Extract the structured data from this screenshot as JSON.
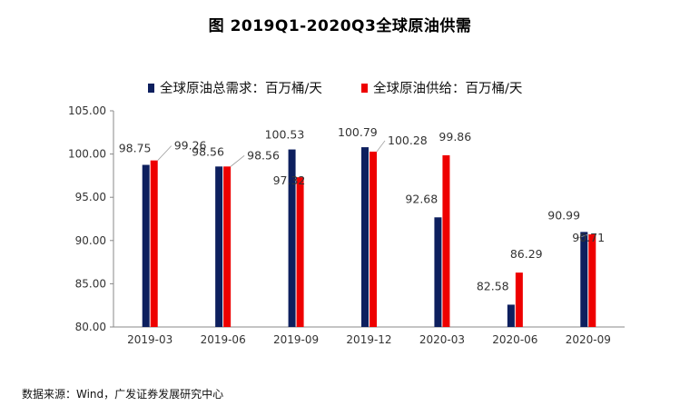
{
  "page": {
    "title": "图   2019Q1-2020Q3全球原油供需",
    "source": "数据来源：Wind，广发证券发展研究中心"
  },
  "chart_data": {
    "type": "bar",
    "categories": [
      "2019-03",
      "2019-06",
      "2019-09",
      "2019-12",
      "2020-03",
      "2020-06",
      "2020-09"
    ],
    "series": [
      {
        "name": "全球原油总需求：百万桶/天",
        "color": "#0D1F5E",
        "values": [
          98.75,
          98.56,
          100.53,
          100.79,
          92.68,
          82.58,
          90.99
        ],
        "labels": [
          "98.75",
          "98.56",
          "100.53",
          "100.79",
          "92.68",
          "82.58",
          "90.99"
        ]
      },
      {
        "name": "全球原油供给：百万桶/天",
        "color": "#EE0000",
        "values": [
          99.26,
          98.56,
          97.32,
          100.28,
          99.86,
          86.29,
          90.71
        ],
        "labels": [
          "99.26",
          "98.56",
          "97.32",
          "100.28",
          "99.86",
          "86.29",
          "90.71"
        ]
      }
    ],
    "ylim": [
      80,
      105
    ],
    "yticks": [
      "80.00",
      "85.00",
      "90.00",
      "95.00",
      "100.00",
      "105.00"
    ],
    "grid": false,
    "legend": "top"
  }
}
